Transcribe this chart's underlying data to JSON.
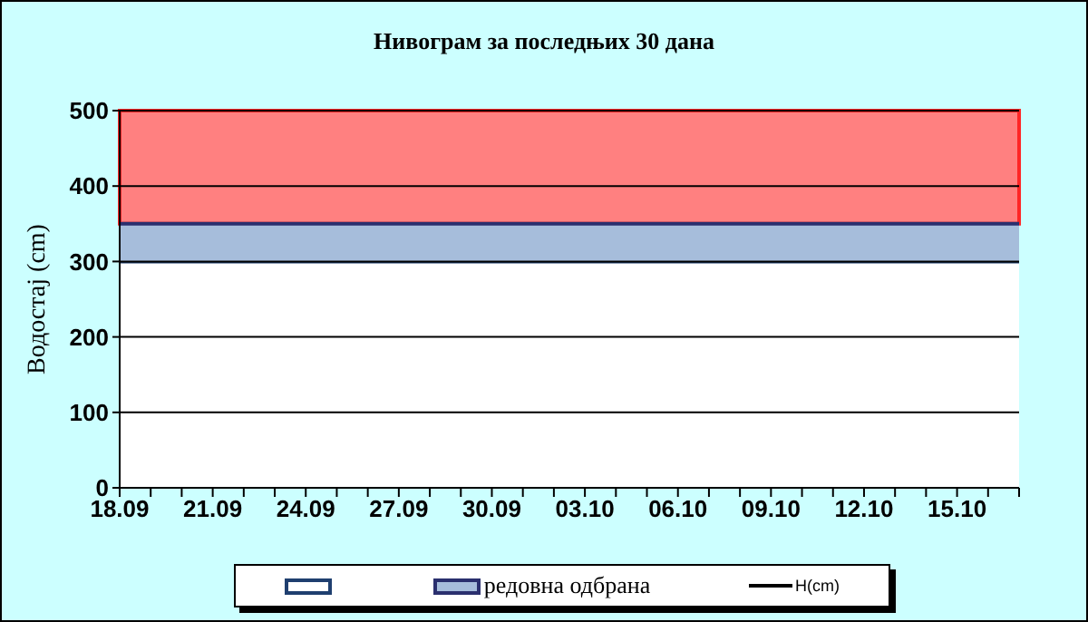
{
  "chart_data": {
    "type": "area",
    "title": "Нивограм за последњих 30 дана",
    "ylabel": "Водостај (cm)",
    "x": [
      "--09-18",
      "--09-19",
      "--09-20",
      "--09-21",
      "--09-22",
      "--09-23",
      "--09-24",
      "--09-25",
      "--09-26",
      "--09-27",
      "--09-28",
      "--09-29",
      "--09-30",
      "--10-01",
      "--10-02",
      "--10-03",
      "--10-04",
      "--10-05",
      "--10-06",
      "--10-07",
      "--10-08",
      "--10-09",
      "--10-10",
      "--10-11",
      "--10-12",
      "--10-13",
      "--10-14",
      "--10-15",
      "--10-16",
      "--10-17"
    ],
    "stacked": true,
    "series": [
      {
        "color": "#ffffff",
        "values": [
          300,
          300,
          300,
          300,
          300,
          300,
          300,
          300,
          300,
          300,
          300,
          300,
          300,
          300,
          300,
          300,
          300,
          300,
          300,
          300,
          300,
          300,
          300,
          300,
          300,
          300,
          300,
          300,
          300,
          300
        ]
      },
      {
        "name": "редовна одбрана",
        "color": "#a6bddb",
        "values": [
          50,
          50,
          50,
          50,
          50,
          50,
          50,
          50,
          50,
          50,
          50,
          50,
          50,
          50,
          50,
          50,
          50,
          50,
          50,
          50,
          50,
          50,
          50,
          50,
          50,
          50,
          50,
          50,
          50,
          50
        ]
      },
      {
        "name": "H(cm)",
        "type": "line",
        "color": "#000000",
        "values": [
          null,
          null,
          null,
          null,
          null,
          null,
          null,
          null,
          null,
          null,
          null,
          null,
          null,
          null,
          null,
          null,
          null,
          null,
          null,
          null,
          null,
          null,
          null,
          null,
          null,
          null,
          null,
          null,
          null,
          null
        ]
      }
    ],
    "bands": [
      {
        "axis": "y",
        "from": 350,
        "to": 500,
        "color": "#ff8080"
      }
    ],
    "xlim": [
      "--09-18",
      "--10-17"
    ],
    "xticks": [
      {
        "value": "--09-18",
        "label": "18.09"
      },
      {
        "value": "--09-19",
        "label": null
      },
      {
        "value": "--09-20",
        "label": null
      },
      {
        "value": "--09-21",
        "label": "21.09"
      },
      {
        "value": "--09-22",
        "label": null
      },
      {
        "value": "--09-23",
        "label": null
      },
      {
        "value": "--09-24",
        "label": "24.09"
      },
      {
        "value": "--09-25",
        "label": null
      },
      {
        "value": "--09-26",
        "label": null
      },
      {
        "value": "--09-27",
        "label": "27.09"
      },
      {
        "value": "--09-28",
        "label": null
      },
      {
        "value": "--09-29",
        "label": null
      },
      {
        "value": "--09-30",
        "label": "30.09"
      },
      {
        "value": "--10-01",
        "label": null
      },
      {
        "value": "--10-02",
        "label": null
      },
      {
        "value": "--10-03",
        "label": "03.10"
      },
      {
        "value": "--10-04",
        "label": null
      },
      {
        "value": "--10-05",
        "label": null
      },
      {
        "value": "--10-06",
        "label": "06.10"
      },
      {
        "value": "--10-07",
        "label": null
      },
      {
        "value": "--10-08",
        "label": null
      },
      {
        "value": "--10-09",
        "label": "09.10"
      },
      {
        "value": "--10-10",
        "label": null
      },
      {
        "value": "--10-11",
        "label": null
      },
      {
        "value": "--10-12",
        "label": "12.10"
      },
      {
        "value": "--10-13",
        "label": null
      },
      {
        "value": "--10-14",
        "label": null
      },
      {
        "value": "--10-15",
        "label": "15.10"
      },
      {
        "value": "--10-16",
        "label": null
      },
      {
        "value": "--10-17",
        "label": null
      }
    ],
    "ylim": [
      0,
      500
    ],
    "yticks": [
      0,
      100,
      200,
      300,
      400,
      500
    ],
    "grid": "y",
    "legend": "bottom"
  }
}
